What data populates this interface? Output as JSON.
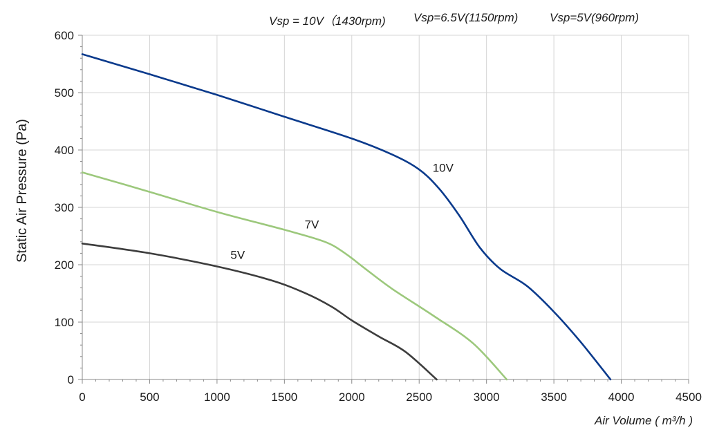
{
  "header_notes": [
    "Vsp = 10V（1430rpm)",
    "Vsp=6.5V(1150rpm)",
    "Vsp=5V(960rpm)"
  ],
  "chart_data": {
    "type": "line",
    "title": "",
    "xlabel": "Air Volume ( m³/h )",
    "ylabel": "Static Air Pressure  (Pa)",
    "xlim": [
      0,
      4500
    ],
    "ylim": [
      0,
      600
    ],
    "x_ticks": [
      0,
      500,
      1000,
      1500,
      2000,
      2500,
      3000,
      3500,
      4000,
      4500
    ],
    "y_ticks": [
      0,
      100,
      200,
      300,
      400,
      500,
      600
    ],
    "grid": true,
    "series": [
      {
        "name": "10V",
        "color": "#0a3a8c",
        "points": [
          [
            0,
            567
          ],
          [
            500,
            532
          ],
          [
            1000,
            496
          ],
          [
            1500,
            458
          ],
          [
            2000,
            420
          ],
          [
            2300,
            392
          ],
          [
            2500,
            366
          ],
          [
            2650,
            332
          ],
          [
            2800,
            285
          ],
          [
            2950,
            230
          ],
          [
            3100,
            193
          ],
          [
            3300,
            163
          ],
          [
            3500,
            118
          ],
          [
            3700,
            65
          ],
          [
            3920,
            0
          ]
        ]
      },
      {
        "name": "7V",
        "color": "#9cc87c",
        "points": [
          [
            0,
            361
          ],
          [
            500,
            327
          ],
          [
            1000,
            292
          ],
          [
            1500,
            261
          ],
          [
            1800,
            240
          ],
          [
            1950,
            220
          ],
          [
            2100,
            193
          ],
          [
            2300,
            158
          ],
          [
            2600,
            112
          ],
          [
            2900,
            63
          ],
          [
            3150,
            0
          ]
        ]
      },
      {
        "name": "5V",
        "color": "#3d3d3d",
        "points": [
          [
            0,
            237
          ],
          [
            500,
            220
          ],
          [
            1000,
            197
          ],
          [
            1400,
            173
          ],
          [
            1650,
            151
          ],
          [
            1850,
            127
          ],
          [
            2000,
            103
          ],
          [
            2200,
            75
          ],
          [
            2400,
            48
          ],
          [
            2630,
            0
          ]
        ]
      }
    ],
    "annotations": [
      {
        "text": "10V",
        "x": 2600,
        "y": 362
      },
      {
        "text": "7V",
        "x": 1650,
        "y": 263
      },
      {
        "text": "5V",
        "x": 1100,
        "y": 210
      }
    ]
  }
}
